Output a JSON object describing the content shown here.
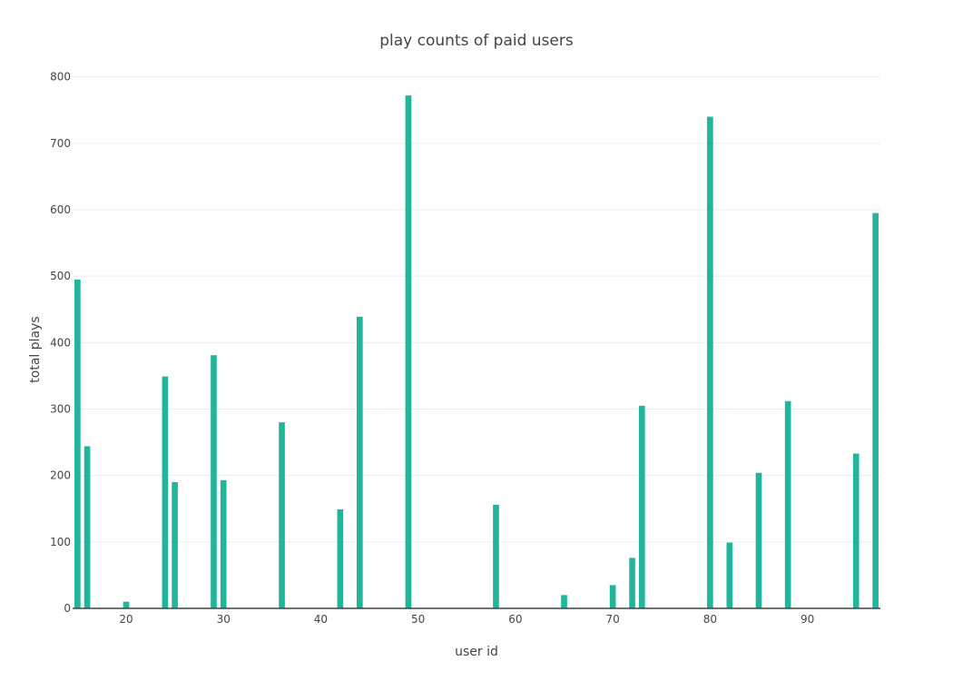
{
  "chart_data": {
    "type": "bar",
    "title": "play counts of paid users",
    "xlabel": "user id",
    "ylabel": "total plays",
    "xlim": [
      14.5,
      97.5
    ],
    "ylim": [
      0,
      820
    ],
    "x_ticks": [
      20,
      30,
      40,
      50,
      60,
      70,
      80,
      90
    ],
    "y_ticks": [
      0,
      100,
      200,
      300,
      400,
      500,
      600,
      700,
      800
    ],
    "grid": true,
    "bar_color": "#21b59b",
    "x": [
      15,
      16,
      20,
      24,
      25,
      29,
      30,
      36,
      42,
      44,
      49,
      58,
      65,
      70,
      72,
      73,
      80,
      82,
      85,
      88,
      95,
      97
    ],
    "values": [
      495,
      244,
      10,
      349,
      190,
      381,
      193,
      280,
      149,
      439,
      772,
      156,
      20,
      35,
      76,
      305,
      740,
      99,
      204,
      312,
      233,
      595
    ]
  }
}
